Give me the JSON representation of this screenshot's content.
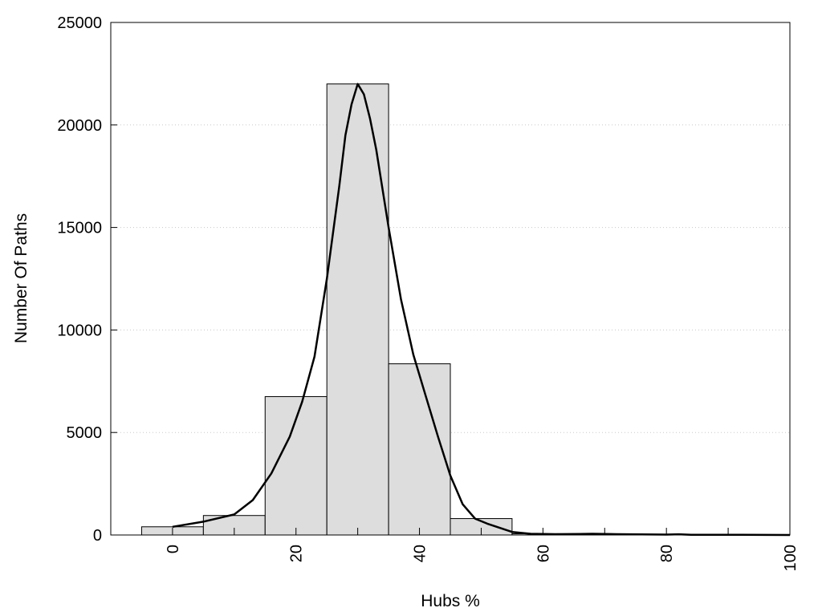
{
  "chart_data": {
    "type": "bar",
    "title": "",
    "xlabel": "Hubs %",
    "ylabel": "Number Of Paths",
    "xlim": [
      -10,
      100
    ],
    "ylim": [
      0,
      25000
    ],
    "x_ticks": [
      0,
      20,
      40,
      60,
      80,
      100
    ],
    "y_ticks": [
      0,
      5000,
      10000,
      15000,
      20000,
      25000
    ],
    "grid": "horizontal dotted",
    "legend": "none",
    "bar_color": "#dddddd",
    "line_color": "#000000",
    "bins": [
      {
        "x0": -5,
        "x1": 5,
        "value": 400
      },
      {
        "x0": 5,
        "x1": 15,
        "value": 950
      },
      {
        "x0": 15,
        "x1": 25,
        "value": 6750
      },
      {
        "x0": 25,
        "x1": 35,
        "value": 22000
      },
      {
        "x0": 35,
        "x1": 45,
        "value": 8350
      },
      {
        "x0": 45,
        "x1": 55,
        "value": 800
      },
      {
        "x0": 55,
        "x1": 65,
        "value": 60
      },
      {
        "x0": 65,
        "x1": 75,
        "value": 40
      },
      {
        "x0": 75,
        "x1": 85,
        "value": 25
      },
      {
        "x0": 85,
        "x1": 95,
        "value": 10
      },
      {
        "x0": 95,
        "x1": 100,
        "value": 5
      }
    ],
    "curve": {
      "x": [
        0,
        5,
        10,
        13,
        16,
        19,
        21,
        23,
        25,
        27,
        28,
        29,
        30,
        31,
        32,
        33,
        35,
        37,
        39,
        41,
        43,
        45,
        47,
        49,
        51,
        53,
        55,
        58,
        62,
        66,
        68,
        72,
        76,
        80,
        82,
        84,
        88,
        92,
        96,
        100
      ],
      "y": [
        400,
        650,
        1000,
        1700,
        3000,
        4800,
        6500,
        8700,
        12500,
        17000,
        19500,
        21000,
        22000,
        21500,
        20300,
        18800,
        15000,
        11500,
        8800,
        6800,
        4800,
        2900,
        1500,
        800,
        550,
        350,
        150,
        60,
        40,
        50,
        60,
        40,
        30,
        20,
        35,
        10,
        10,
        10,
        5,
        0
      ]
    }
  }
}
